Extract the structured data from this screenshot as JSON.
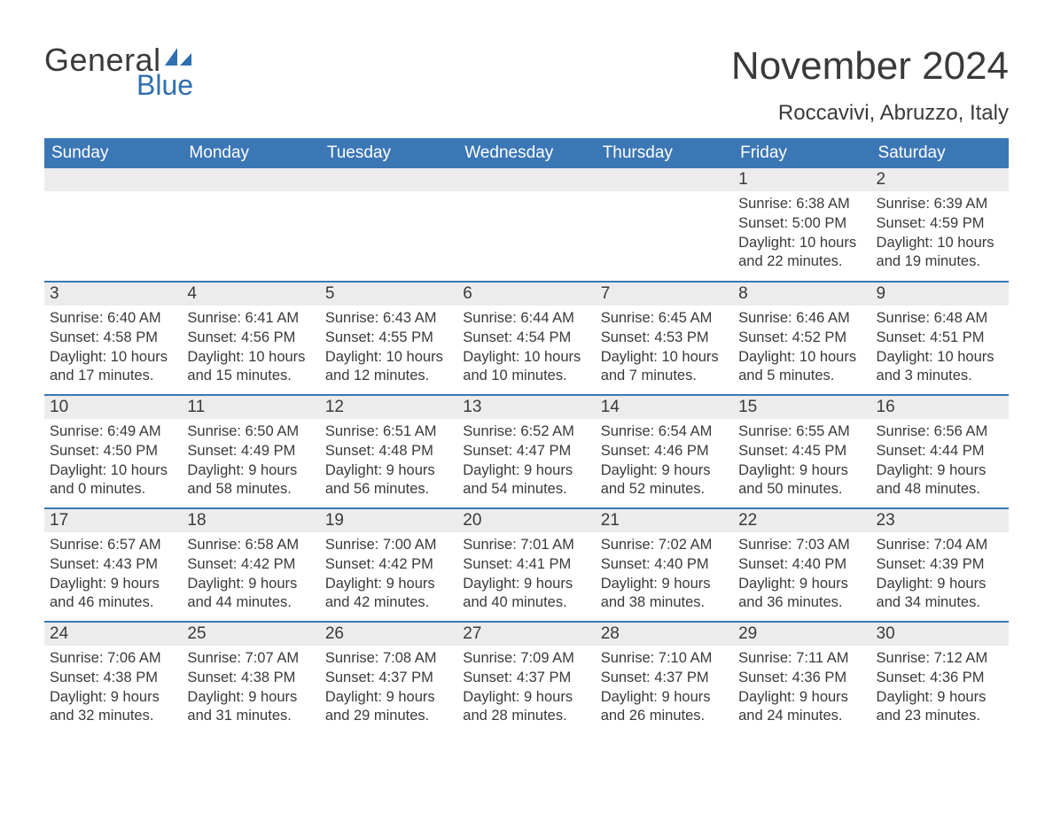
{
  "logo": {
    "text1": "General",
    "text2": "Blue",
    "shape_color": "#2f6fb0"
  },
  "title": "November 2024",
  "location": "Roccavivi, Abruzzo, Italy",
  "colors": {
    "header_bg": "#3c77b5",
    "header_text": "#ffffff",
    "daynum_bg": "#ececec",
    "row_border": "#3c77b5",
    "text": "#3a3a3a",
    "logo_blue": "#2f6fb0",
    "page_bg": "#ffffff"
  },
  "weekdays": [
    "Sunday",
    "Monday",
    "Tuesday",
    "Wednesday",
    "Thursday",
    "Friday",
    "Saturday"
  ],
  "weeks": [
    [
      null,
      null,
      null,
      null,
      null,
      {
        "n": "1",
        "sunrise": "Sunrise: 6:38 AM",
        "sunset": "Sunset: 5:00 PM",
        "dl1": "Daylight: 10 hours",
        "dl2": "and 22 minutes."
      },
      {
        "n": "2",
        "sunrise": "Sunrise: 6:39 AM",
        "sunset": "Sunset: 4:59 PM",
        "dl1": "Daylight: 10 hours",
        "dl2": "and 19 minutes."
      }
    ],
    [
      {
        "n": "3",
        "sunrise": "Sunrise: 6:40 AM",
        "sunset": "Sunset: 4:58 PM",
        "dl1": "Daylight: 10 hours",
        "dl2": "and 17 minutes."
      },
      {
        "n": "4",
        "sunrise": "Sunrise: 6:41 AM",
        "sunset": "Sunset: 4:56 PM",
        "dl1": "Daylight: 10 hours",
        "dl2": "and 15 minutes."
      },
      {
        "n": "5",
        "sunrise": "Sunrise: 6:43 AM",
        "sunset": "Sunset: 4:55 PM",
        "dl1": "Daylight: 10 hours",
        "dl2": "and 12 minutes."
      },
      {
        "n": "6",
        "sunrise": "Sunrise: 6:44 AM",
        "sunset": "Sunset: 4:54 PM",
        "dl1": "Daylight: 10 hours",
        "dl2": "and 10 minutes."
      },
      {
        "n": "7",
        "sunrise": "Sunrise: 6:45 AM",
        "sunset": "Sunset: 4:53 PM",
        "dl1": "Daylight: 10 hours",
        "dl2": "and 7 minutes."
      },
      {
        "n": "8",
        "sunrise": "Sunrise: 6:46 AM",
        "sunset": "Sunset: 4:52 PM",
        "dl1": "Daylight: 10 hours",
        "dl2": "and 5 minutes."
      },
      {
        "n": "9",
        "sunrise": "Sunrise: 6:48 AM",
        "sunset": "Sunset: 4:51 PM",
        "dl1": "Daylight: 10 hours",
        "dl2": "and 3 minutes."
      }
    ],
    [
      {
        "n": "10",
        "sunrise": "Sunrise: 6:49 AM",
        "sunset": "Sunset: 4:50 PM",
        "dl1": "Daylight: 10 hours",
        "dl2": "and 0 minutes."
      },
      {
        "n": "11",
        "sunrise": "Sunrise: 6:50 AM",
        "sunset": "Sunset: 4:49 PM",
        "dl1": "Daylight: 9 hours",
        "dl2": "and 58 minutes."
      },
      {
        "n": "12",
        "sunrise": "Sunrise: 6:51 AM",
        "sunset": "Sunset: 4:48 PM",
        "dl1": "Daylight: 9 hours",
        "dl2": "and 56 minutes."
      },
      {
        "n": "13",
        "sunrise": "Sunrise: 6:52 AM",
        "sunset": "Sunset: 4:47 PM",
        "dl1": "Daylight: 9 hours",
        "dl2": "and 54 minutes."
      },
      {
        "n": "14",
        "sunrise": "Sunrise: 6:54 AM",
        "sunset": "Sunset: 4:46 PM",
        "dl1": "Daylight: 9 hours",
        "dl2": "and 52 minutes."
      },
      {
        "n": "15",
        "sunrise": "Sunrise: 6:55 AM",
        "sunset": "Sunset: 4:45 PM",
        "dl1": "Daylight: 9 hours",
        "dl2": "and 50 minutes."
      },
      {
        "n": "16",
        "sunrise": "Sunrise: 6:56 AM",
        "sunset": "Sunset: 4:44 PM",
        "dl1": "Daylight: 9 hours",
        "dl2": "and 48 minutes."
      }
    ],
    [
      {
        "n": "17",
        "sunrise": "Sunrise: 6:57 AM",
        "sunset": "Sunset: 4:43 PM",
        "dl1": "Daylight: 9 hours",
        "dl2": "and 46 minutes."
      },
      {
        "n": "18",
        "sunrise": "Sunrise: 6:58 AM",
        "sunset": "Sunset: 4:42 PM",
        "dl1": "Daylight: 9 hours",
        "dl2": "and 44 minutes."
      },
      {
        "n": "19",
        "sunrise": "Sunrise: 7:00 AM",
        "sunset": "Sunset: 4:42 PM",
        "dl1": "Daylight: 9 hours",
        "dl2": "and 42 minutes."
      },
      {
        "n": "20",
        "sunrise": "Sunrise: 7:01 AM",
        "sunset": "Sunset: 4:41 PM",
        "dl1": "Daylight: 9 hours",
        "dl2": "and 40 minutes."
      },
      {
        "n": "21",
        "sunrise": "Sunrise: 7:02 AM",
        "sunset": "Sunset: 4:40 PM",
        "dl1": "Daylight: 9 hours",
        "dl2": "and 38 minutes."
      },
      {
        "n": "22",
        "sunrise": "Sunrise: 7:03 AM",
        "sunset": "Sunset: 4:40 PM",
        "dl1": "Daylight: 9 hours",
        "dl2": "and 36 minutes."
      },
      {
        "n": "23",
        "sunrise": "Sunrise: 7:04 AM",
        "sunset": "Sunset: 4:39 PM",
        "dl1": "Daylight: 9 hours",
        "dl2": "and 34 minutes."
      }
    ],
    [
      {
        "n": "24",
        "sunrise": "Sunrise: 7:06 AM",
        "sunset": "Sunset: 4:38 PM",
        "dl1": "Daylight: 9 hours",
        "dl2": "and 32 minutes."
      },
      {
        "n": "25",
        "sunrise": "Sunrise: 7:07 AM",
        "sunset": "Sunset: 4:38 PM",
        "dl1": "Daylight: 9 hours",
        "dl2": "and 31 minutes."
      },
      {
        "n": "26",
        "sunrise": "Sunrise: 7:08 AM",
        "sunset": "Sunset: 4:37 PM",
        "dl1": "Daylight: 9 hours",
        "dl2": "and 29 minutes."
      },
      {
        "n": "27",
        "sunrise": "Sunrise: 7:09 AM",
        "sunset": "Sunset: 4:37 PM",
        "dl1": "Daylight: 9 hours",
        "dl2": "and 28 minutes."
      },
      {
        "n": "28",
        "sunrise": "Sunrise: 7:10 AM",
        "sunset": "Sunset: 4:37 PM",
        "dl1": "Daylight: 9 hours",
        "dl2": "and 26 minutes."
      },
      {
        "n": "29",
        "sunrise": "Sunrise: 7:11 AM",
        "sunset": "Sunset: 4:36 PM",
        "dl1": "Daylight: 9 hours",
        "dl2": "and 24 minutes."
      },
      {
        "n": "30",
        "sunrise": "Sunrise: 7:12 AM",
        "sunset": "Sunset: 4:36 PM",
        "dl1": "Daylight: 9 hours",
        "dl2": "and 23 minutes."
      }
    ]
  ]
}
